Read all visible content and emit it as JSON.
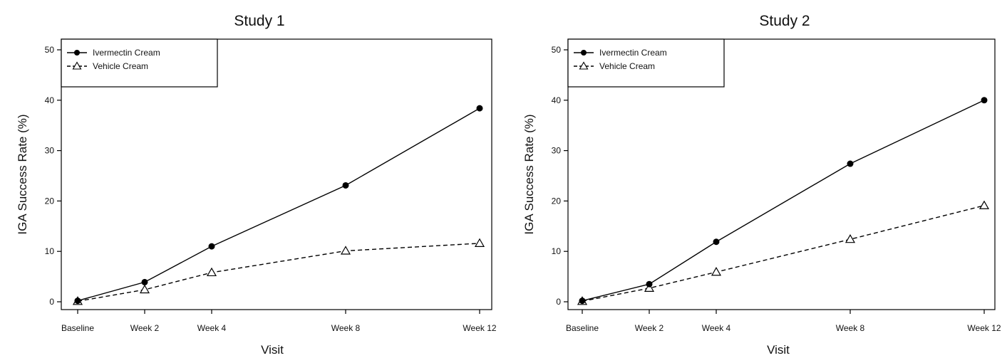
{
  "chart_data": [
    {
      "type": "line",
      "title": "Study 1",
      "xlabel": "Visit",
      "ylabel": "IGA Success Rate (%)",
      "categories": [
        "Baseline",
        "Week 2",
        "Week 4",
        "Week 8",
        "Week 12"
      ],
      "x": [
        0,
        2,
        4,
        8,
        12
      ],
      "ylim": [
        0,
        50
      ],
      "yticks": [
        0,
        10,
        20,
        30,
        40,
        50
      ],
      "grid": false,
      "legend_position": "top-left",
      "series": [
        {
          "name": "Ivermectin Cream",
          "values": [
            0.2,
            3.9,
            11.0,
            23.1,
            38.4
          ],
          "marker": "filled-circle",
          "line": "solid",
          "color": "#000000"
        },
        {
          "name": "Vehicle Cream",
          "values": [
            0.1,
            2.4,
            5.8,
            10.1,
            11.6
          ],
          "marker": "open-triangle",
          "line": "dashed",
          "color": "#000000"
        }
      ]
    },
    {
      "type": "line",
      "title": "Study 2",
      "xlabel": "Visit",
      "ylabel": "IGA Success Rate (%)",
      "categories": [
        "Baseline",
        "Week 2",
        "Week 4",
        "Week 8",
        "Week 12"
      ],
      "x": [
        0,
        2,
        4,
        8,
        12
      ],
      "ylim": [
        0,
        50
      ],
      "yticks": [
        0,
        10,
        20,
        30,
        40,
        50
      ],
      "grid": false,
      "legend_position": "top-left",
      "series": [
        {
          "name": "Ivermectin Cream",
          "values": [
            0.2,
            3.5,
            11.9,
            27.4,
            40.0
          ],
          "marker": "filled-circle",
          "line": "solid",
          "color": "#000000"
        },
        {
          "name": "Vehicle Cream",
          "values": [
            0.1,
            2.7,
            5.9,
            12.4,
            19.1
          ],
          "marker": "open-triangle",
          "line": "dashed",
          "color": "#000000"
        }
      ]
    }
  ]
}
